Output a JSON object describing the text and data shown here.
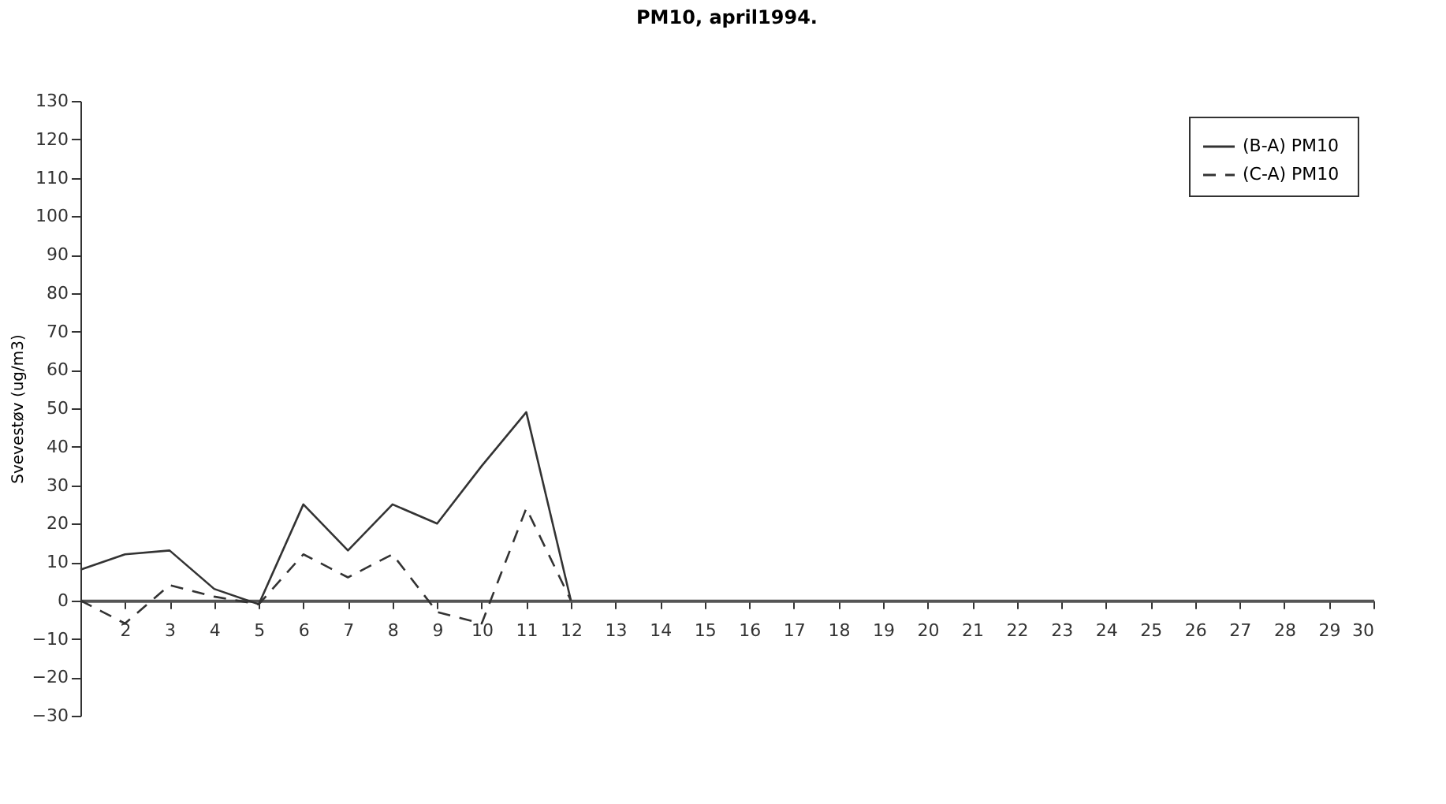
{
  "chart_data": {
    "type": "line",
    "title": "PM10, april1994.",
    "ylabel": "Svevestøv (ug/m3)",
    "x": [
      1,
      2,
      3,
      4,
      5,
      6,
      7,
      8,
      9,
      10,
      11,
      12
    ],
    "series": [
      {
        "name": "(B-A)  PM10",
        "color": "#333333",
        "line_style": "solid",
        "values": [
          8,
          12,
          13,
          3,
          -1,
          25,
          13,
          25,
          20,
          35,
          49,
          0
        ]
      },
      {
        "name": "(C-A)  PM10",
        "color": "#333333",
        "line_style": "dashed",
        "values": [
          0,
          -6,
          4,
          1,
          -1,
          12,
          6,
          12,
          -3,
          -6,
          24,
          0
        ]
      }
    ],
    "xlim": [
      1,
      30
    ],
    "xticks": [
      2,
      3,
      4,
      5,
      6,
      7,
      8,
      9,
      10,
      11,
      12,
      13,
      14,
      15,
      16,
      17,
      18,
      19,
      20,
      21,
      22,
      23,
      24,
      25,
      26,
      27,
      28,
      29,
      30
    ],
    "ylim": [
      -30,
      130
    ],
    "yticks": [
      -30,
      -20,
      -10,
      0,
      10,
      20,
      30,
      40,
      50,
      60,
      70,
      80,
      90,
      100,
      110,
      120,
      130
    ],
    "grid": false,
    "legend": "top right",
    "marker": "none"
  }
}
